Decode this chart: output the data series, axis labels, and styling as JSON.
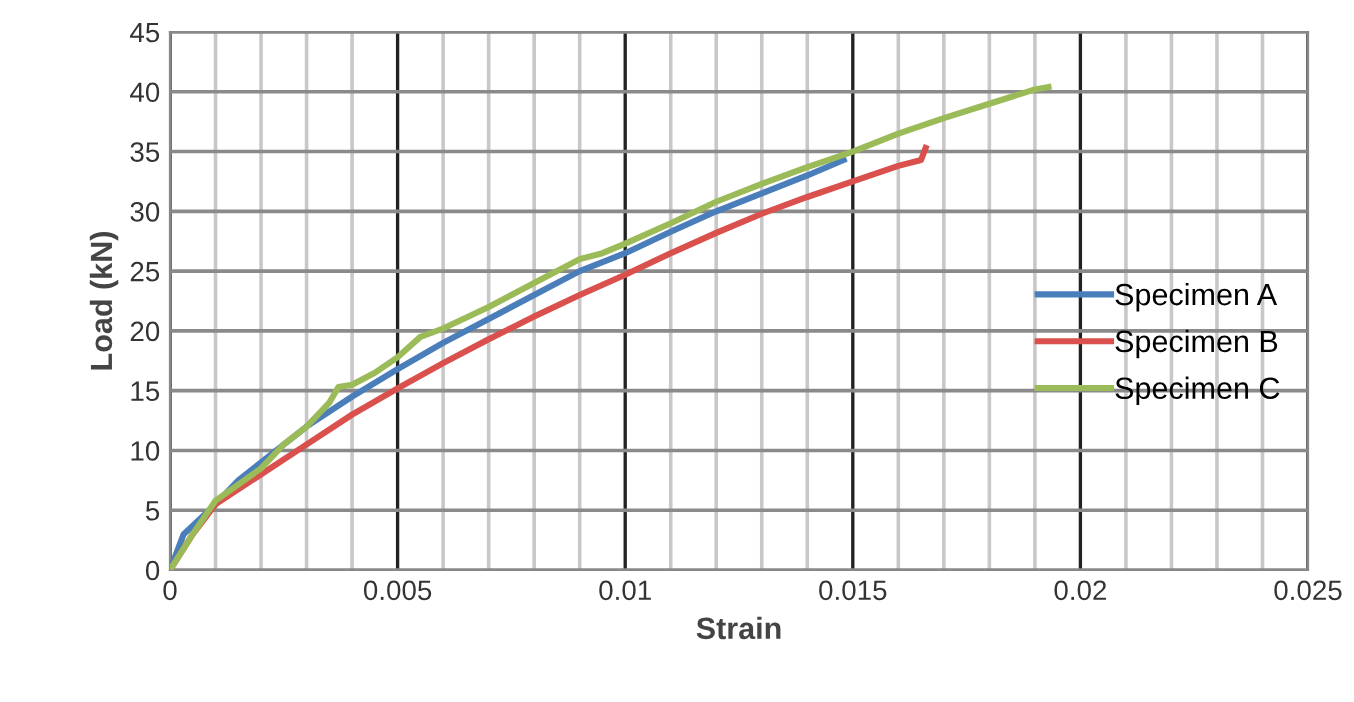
{
  "chart_data": {
    "type": "line",
    "xlabel": "Strain",
    "ylabel": "Load (kN)",
    "xlim": [
      0,
      0.025
    ],
    "ylim": [
      0,
      45
    ],
    "xticks": [
      0,
      {
        "value": 0.001,
        "label": null
      },
      {
        "value": 0.002,
        "label": null
      },
      {
        "value": 0.003,
        "label": null
      },
      {
        "value": 0.004,
        "label": null
      },
      0.005,
      {
        "value": 0.006,
        "label": null
      },
      {
        "value": 0.007,
        "label": null
      },
      {
        "value": 0.008,
        "label": null
      },
      {
        "value": 0.009,
        "label": null
      },
      0.01,
      {
        "value": 0.011,
        "label": null
      },
      {
        "value": 0.012,
        "label": null
      },
      {
        "value": 0.013,
        "label": null
      },
      {
        "value": 0.014,
        "label": null
      },
      0.015,
      {
        "value": 0.016,
        "label": null
      },
      {
        "value": 0.017,
        "label": null
      },
      {
        "value": 0.018,
        "label": null
      },
      {
        "value": 0.019,
        "label": null
      },
      0.02,
      {
        "value": 0.021,
        "label": null
      },
      {
        "value": 0.022,
        "label": null
      },
      {
        "value": 0.023,
        "label": null
      },
      {
        "value": 0.024,
        "label": null
      },
      0.025
    ],
    "yticks": [
      0,
      5,
      10,
      15,
      20,
      25,
      30,
      35,
      40,
      45
    ],
    "grid": true,
    "legend": "right",
    "marker": "none",
    "line_style": "solid",
    "series": [
      {
        "name": "Specimen A",
        "color": "#4a7ebb",
        "x": [
          0,
          0.0003,
          0.0005,
          0.001,
          0.0015,
          0.002,
          0.003,
          0.004,
          0.005,
          0.006,
          0.007,
          0.008,
          0.009,
          0.01,
          0.011,
          0.012,
          0.013,
          0.014,
          0.0148
        ],
        "values": [
          0,
          3,
          3.7,
          5.5,
          7.5,
          9,
          12,
          14.5,
          16.8,
          19,
          21,
          23,
          25,
          26.5,
          28.3,
          30,
          31.5,
          33,
          34.3
        ]
      },
      {
        "name": "Specimen B",
        "color": "#d9504d",
        "x": [
          0,
          0.0005,
          0.001,
          0.002,
          0.003,
          0.004,
          0.005,
          0.006,
          0.007,
          0.008,
          0.009,
          0.01,
          0.011,
          0.012,
          0.013,
          0.014,
          0.015,
          0.016,
          0.0165,
          0.0166
        ],
        "values": [
          0,
          3,
          5.5,
          8,
          10.5,
          13,
          15.2,
          17.3,
          19.3,
          21.2,
          23,
          24.7,
          26.5,
          28.2,
          29.8,
          31.2,
          32.5,
          33.8,
          34.3,
          35.3
        ]
      },
      {
        "name": "Specimen C",
        "color": "#9bbb59",
        "x": [
          0,
          0.0005,
          0.001,
          0.002,
          0.0025,
          0.003,
          0.0035,
          0.0037,
          0.004,
          0.0045,
          0.005,
          0.0055,
          0.006,
          0.007,
          0.008,
          0.009,
          0.0095,
          0.01,
          0.011,
          0.012,
          0.013,
          0.014,
          0.015,
          0.016,
          0.017,
          0.018,
          0.019,
          0.0193
        ],
        "values": [
          0,
          3,
          5.8,
          8.5,
          10.5,
          12,
          14,
          15.3,
          15.5,
          16.5,
          17.8,
          19.5,
          20.2,
          22,
          24,
          26,
          26.5,
          27.3,
          29,
          30.8,
          32.3,
          33.7,
          35,
          36.5,
          37.8,
          39,
          40.2,
          40.4
        ]
      }
    ]
  }
}
